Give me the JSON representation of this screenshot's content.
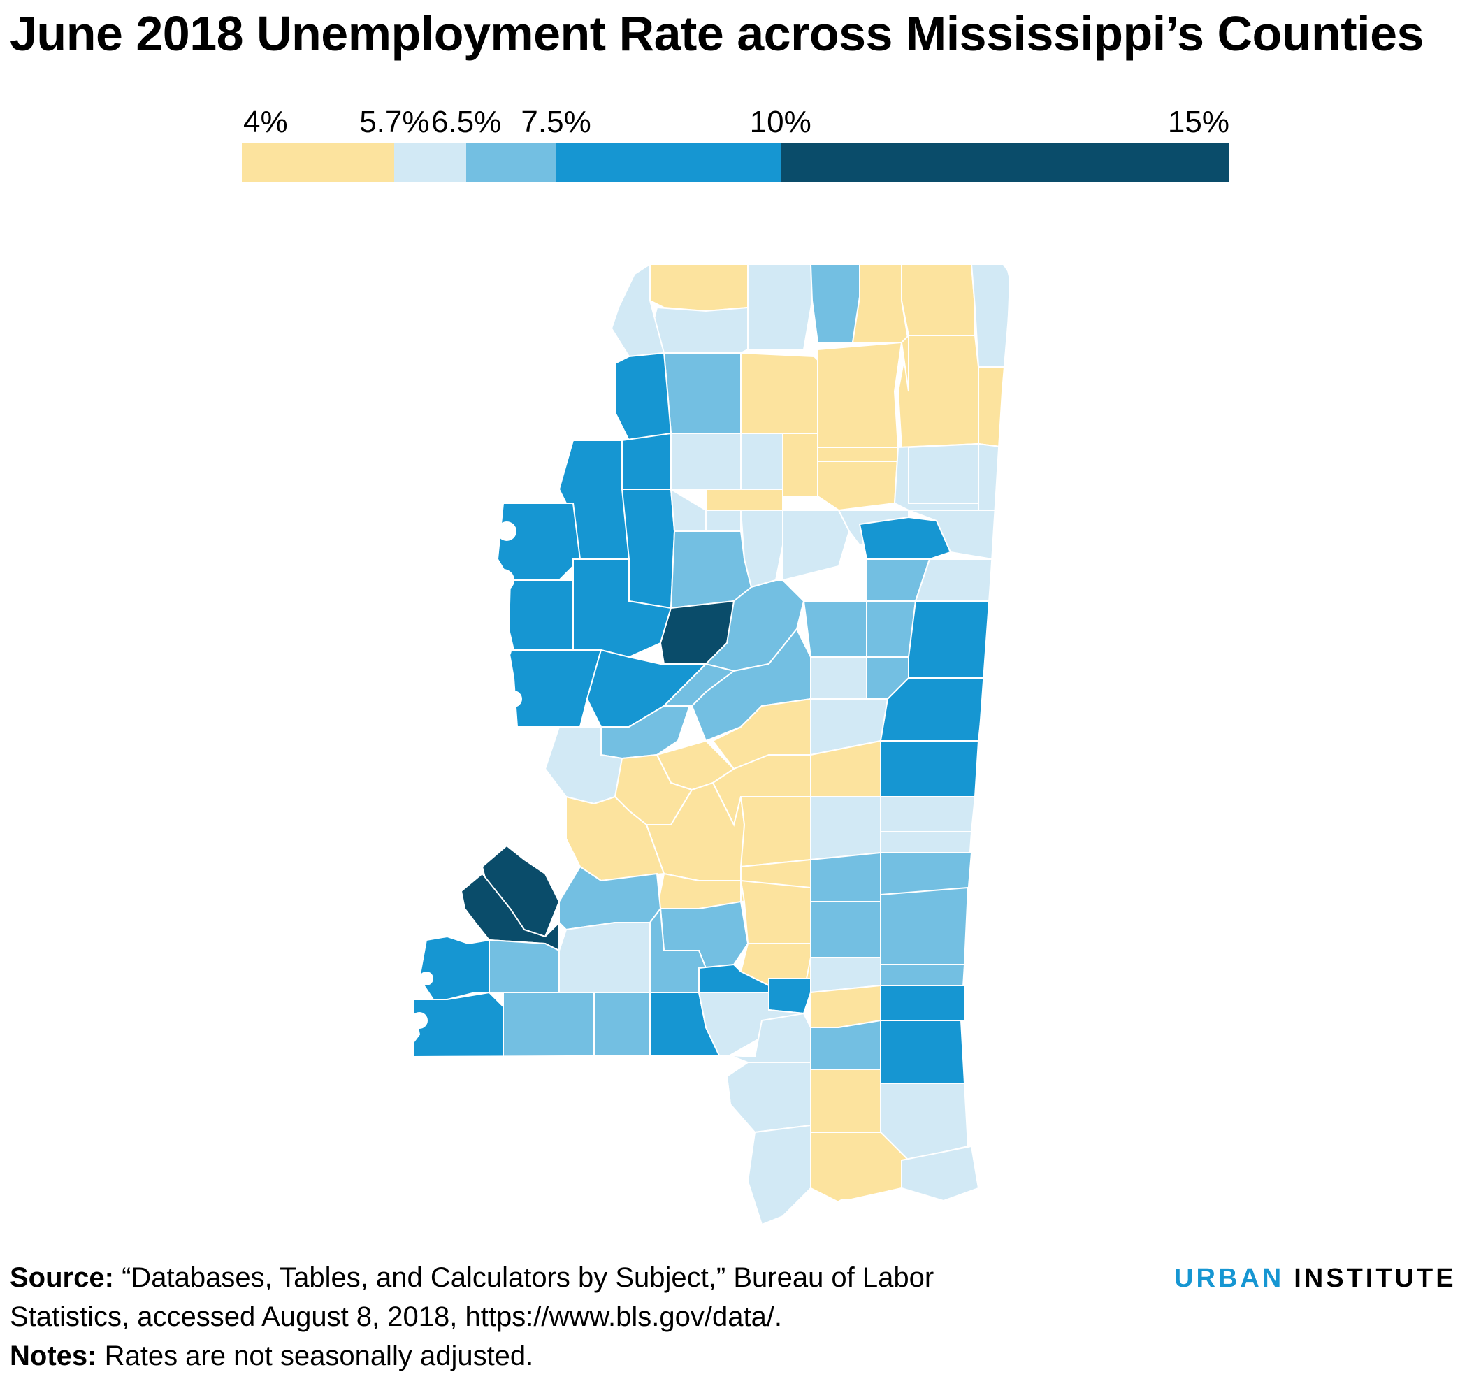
{
  "title": "June 2018 Unemployment Rate across Mississippi’s Counties",
  "legend": {
    "ticks": [
      {
        "label": "4%",
        "value": 4
      },
      {
        "label": "5.7%",
        "value": 5.7
      },
      {
        "label": "6.5%",
        "value": 6.5
      },
      {
        "label": "7.5%",
        "value": 7.5
      },
      {
        "label": "10%",
        "value": 10
      },
      {
        "label": "15%",
        "value": 15
      }
    ],
    "bins": [
      {
        "from": 4,
        "to": 5.7,
        "color": "#fce39e"
      },
      {
        "from": 5.7,
        "to": 6.5,
        "color": "#d2e9f5"
      },
      {
        "from": 6.5,
        "to": 7.5,
        "color": "#73bfe2"
      },
      {
        "from": 7.5,
        "to": 10,
        "color": "#1696d2"
      },
      {
        "from": 10,
        "to": 15,
        "color": "#0a4c6a"
      }
    ]
  },
  "map": {
    "region": "Mississippi",
    "border_color": "#ffffff"
  },
  "source": {
    "label": "Source:",
    "text": "“Databases, Tables, and Calculators by Subject,” Bureau of Labor Statistics, accessed August 8, 2018, https://www.bls.gov/data/."
  },
  "notes": {
    "label": "Notes:",
    "text": "Rates are not seasonally adjusted."
  },
  "logo": {
    "word1": "URBAN",
    "word2": "INSTITUTE"
  }
}
